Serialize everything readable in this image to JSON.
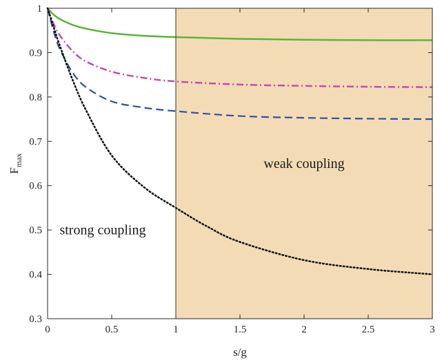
{
  "chart_data": {
    "type": "line",
    "xlabel": "s/g",
    "ylabel_main": "F",
    "ylabel_sub": "max",
    "xlim": [
      0,
      3
    ],
    "ylim": [
      0.3,
      1
    ],
    "xticks": [
      0,
      0.5,
      1,
      1.5,
      2,
      2.5,
      3
    ],
    "xtick_labels": [
      "0",
      "0.5",
      "1",
      "1.5",
      "2",
      "2.5",
      "3"
    ],
    "yticks": [
      0.3,
      0.4,
      0.5,
      0.6,
      0.7,
      0.8,
      0.9,
      1
    ],
    "ytick_labels": [
      "0.3",
      "0.4",
      "0.5",
      "0.6",
      "0.7",
      "0.8",
      "0.9",
      "1"
    ],
    "grid": false,
    "shaded_region": {
      "x_from": 1,
      "x_to": 3,
      "color": "#f3dcb5"
    },
    "annotations": [
      {
        "text": "strong coupling",
        "x": 0.43,
        "y": 0.49
      },
      {
        "text": "weak coupling",
        "x": 2.0,
        "y": 0.64
      }
    ],
    "series": [
      {
        "style": "solid",
        "color": "#5ab43a",
        "x": [
          0,
          0.05,
          0.1,
          0.2,
          0.3,
          0.5,
          0.75,
          1,
          1.5,
          2,
          2.5,
          3
        ],
        "y": [
          1.0,
          0.985,
          0.975,
          0.962,
          0.954,
          0.944,
          0.938,
          0.935,
          0.931,
          0.929,
          0.928,
          0.928
        ]
      },
      {
        "style": "dashdot",
        "color": "#c04cb0",
        "x": [
          0,
          0.05,
          0.1,
          0.2,
          0.3,
          0.5,
          0.75,
          1,
          1.5,
          2,
          2.5,
          3
        ],
        "y": [
          1.0,
          0.963,
          0.937,
          0.902,
          0.88,
          0.857,
          0.843,
          0.835,
          0.828,
          0.825,
          0.823,
          0.822
        ]
      },
      {
        "style": "dashed",
        "color": "#2d4fa8",
        "x": [
          0,
          0.05,
          0.1,
          0.2,
          0.3,
          0.5,
          0.75,
          1,
          1.5,
          2,
          2.5,
          3
        ],
        "y": [
          1.0,
          0.945,
          0.905,
          0.853,
          0.822,
          0.79,
          0.776,
          0.768,
          0.757,
          0.753,
          0.751,
          0.75
        ]
      },
      {
        "style": "dotted",
        "color": "#111111",
        "x": [
          0,
          0.05,
          0.1,
          0.2,
          0.3,
          0.5,
          0.75,
          1,
          1.25,
          1.5,
          2,
          2.5,
          3
        ],
        "y": [
          1.0,
          0.955,
          0.912,
          0.835,
          0.77,
          0.668,
          0.597,
          0.55,
          0.507,
          0.473,
          0.432,
          0.412,
          0.4
        ]
      }
    ]
  }
}
